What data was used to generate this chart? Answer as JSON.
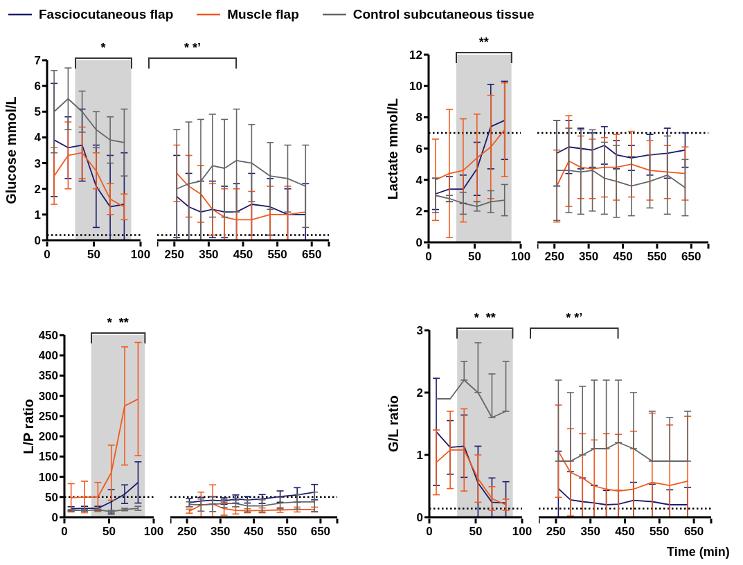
{
  "chart_data": [
    {
      "type": "line",
      "ylabel": "Glucose mmol/L",
      "legend": "top",
      "x": [
        7.5,
        22.5,
        37.5,
        52.5,
        67.5,
        82.5
      ],
      "xlim": [
        0,
        100
      ],
      "xticks": [
        0,
        50,
        100
      ],
      "ylim": [
        0,
        7
      ],
      "yticks": [
        0,
        1,
        2,
        3,
        4,
        5,
        6,
        7
      ],
      "series": [
        {
          "name": "Fasciocutaneous flap",
          "color": "#1c1c6e",
          "values": [
            3.9,
            3.6,
            3.7,
            2.1,
            1.3,
            1.4
          ],
          "errors": [
            2.2,
            1.2,
            1.4,
            1.6,
            [
              0,
              3.3
            ],
            [
              0,
              3.4
            ]
          ]
        },
        {
          "name": "Muscle flap",
          "color": "#f05a1e",
          "values": [
            2.5,
            3.3,
            3.4,
            2.7,
            1.6,
            1.3
          ],
          "errors": [
            1.1,
            1.3,
            1.0,
            0.7,
            0.6,
            0.5
          ]
        },
        {
          "name": "Control subcutaneous tissue",
          "color": "#666666",
          "values": [
            5.0,
            5.5,
            5.0,
            4.3,
            3.9,
            3.8
          ],
          "errors": [
            1.6,
            1.2,
            0.8,
            0.7,
            0.9,
            1.3
          ]
        }
      ],
      "bands": [
        {
          "axis": "x",
          "from": 30,
          "to": 90,
          "color": "#d4d4d4"
        }
      ],
      "ref_lines": [
        {
          "axis": "y",
          "value": 0.2,
          "line_style": "dotted"
        }
      ],
      "annotations": [
        "*"
      ]
    },
    {
      "type": "line",
      "tick_labels": "x",
      "x": [
        257,
        292,
        327,
        361,
        396,
        431,
        475,
        529,
        580,
        632
      ],
      "xlim": [
        200,
        700
      ],
      "xticks": [
        250,
        350,
        450,
        550,
        650
      ],
      "ylim": [
        0,
        7
      ],
      "series": [
        {
          "color": "#1c1c6e",
          "values": [
            1.7,
            1.3,
            1.1,
            1.2,
            1.1,
            1.1,
            1.4,
            1.3,
            1.0,
            1.0
          ],
          "errors": [
            1.6,
            [
              0,
              2.6
            ],
            [
              0,
              2.3
            ],
            1.1,
            1.0,
            1.1,
            1.2,
            1.1,
            1.0,
            [
              0,
              2.2
            ]
          ]
        },
        {
          "color": "#f05a1e",
          "values": [
            2.6,
            2.1,
            1.8,
            1.2,
            0.9,
            0.8,
            0.8,
            1.0,
            1.0,
            1.1
          ],
          "errors": [
            1.1,
            1.2,
            1.1,
            1.0,
            [
              0,
              2.0
            ],
            [
              0,
              2.0
            ],
            [
              0,
              1.9
            ],
            [
              0,
              2.1
            ],
            [
              0,
              2.1
            ],
            null
          ]
        },
        {
          "color": "#666666",
          "values": [
            2.0,
            2.2,
            2.3,
            2.9,
            2.8,
            3.1,
            3.0,
            2.5,
            2.4,
            2.1
          ],
          "errors": [
            [
              0,
              4.3
            ],
            [
              0,
              4.6
            ],
            [
              0,
              4.7
            ],
            2.0,
            1.9,
            2.0,
            1.5,
            1.3,
            1.3,
            1.6
          ]
        }
      ],
      "ref_lines": [
        {
          "axis": "y",
          "value": 0.2,
          "line_style": "dotted"
        }
      ],
      "annotations": [
        "* *’"
      ]
    },
    {
      "type": "line",
      "ylabel": "Lactate mmol/L",
      "x": [
        7.5,
        22.5,
        37.5,
        52.5,
        67.5,
        82.5
      ],
      "xlim": [
        0,
        100
      ],
      "xticks": [
        0,
        50,
        100
      ],
      "ylim": [
        0,
        12
      ],
      "yticks": [
        0,
        2,
        4,
        6,
        8,
        10,
        12
      ],
      "series": [
        {
          "color": "#1c1c6e",
          "values": [
            3.1,
            3.4,
            3.4,
            4.7,
            7.4,
            7.8
          ],
          "errors": [
            1.0,
            0.8,
            0.9,
            1.7,
            2.7,
            2.5
          ]
        },
        {
          "color": "#f05a1e",
          "values": [
            4.0,
            4.4,
            4.6,
            5.4,
            6.1,
            7.2
          ],
          "errors": [
            2.6,
            4.1,
            3.3,
            2.8,
            3.3,
            3.0
          ]
        },
        {
          "color": "#666666",
          "values": [
            3.0,
            2.8,
            2.5,
            2.3,
            2.6,
            2.7
          ],
          "errors": [
            1.1,
            0.2,
            0.7,
            0.3,
            0.7,
            1.0
          ]
        }
      ],
      "bands": [
        {
          "axis": "x",
          "from": 30,
          "to": 90,
          "color": "#d4d4d4"
        }
      ],
      "ref_lines": [
        {
          "axis": "y",
          "value": 7,
          "line_style": "dotted"
        }
      ],
      "annotations": [
        "**"
      ]
    },
    {
      "type": "line",
      "tick_labels": "x",
      "x": [
        257,
        292,
        327,
        361,
        396,
        431,
        475,
        529,
        580,
        632
      ],
      "xlim": [
        200,
        700
      ],
      "xticks": [
        250,
        350,
        450,
        550,
        650
      ],
      "ylim": [
        0,
        12
      ],
      "series": [
        {
          "color": "#1c1c6e",
          "values": [
            5.7,
            6.1,
            6.0,
            5.9,
            6.2,
            5.6,
            5.4,
            5.6,
            5.7,
            5.9
          ],
          "errors": [
            2.1,
            1.7,
            1.3,
            1.1,
            1.2,
            0.9,
            0.8,
            1.3,
            1.6,
            1.1
          ]
        },
        {
          "color": "#f05a1e",
          "values": [
            3.6,
            5.2,
            4.8,
            4.7,
            4.8,
            4.8,
            5.0,
            4.6,
            4.5,
            4.4
          ],
          "errors": [
            2.3,
            2.9,
            2.0,
            1.9,
            1.9,
            2.1,
            2.1,
            1.9,
            1.7,
            1.7
          ]
        },
        {
          "color": "#666666",
          "values": [
            4.6,
            4.6,
            4.5,
            4.6,
            4.1,
            3.9,
            3.6,
            3.9,
            4.3,
            3.5
          ],
          "errors": [
            3.2,
            2.7,
            2.7,
            2.6,
            2.3,
            2.3,
            1.9,
            1.7,
            2.5,
            1.8
          ]
        }
      ],
      "ref_lines": [
        {
          "axis": "y",
          "value": 7,
          "line_style": "dotted"
        }
      ]
    },
    {
      "type": "line",
      "ylabel": "L/P ratio",
      "x": [
        7.5,
        22.5,
        37.5,
        52.5,
        67.5,
        82.5
      ],
      "xlim": [
        0,
        100
      ],
      "xticks": [
        0,
        50,
        100
      ],
      "ylim": [
        0,
        450
      ],
      "yticks": [
        0,
        50,
        100,
        150,
        200,
        250,
        300,
        350,
        400,
        450
      ],
      "series": [
        {
          "color": "#1c1c6e",
          "values": [
            21,
            22,
            22,
            38,
            57,
            86
          ],
          "errors": [
            5,
            5,
            5,
            30,
            23,
            51
          ]
        },
        {
          "color": "#f05a1e",
          "values": [
            48,
            50,
            50,
            110,
            275,
            292
          ],
          "errors": [
            35,
            39,
            36,
            68,
            146,
            140
          ]
        },
        {
          "color": "#666666",
          "values": [
            17,
            17,
            18,
            14,
            19,
            22
          ],
          "errors": [
            2,
            2,
            2,
            3,
            3,
            5
          ]
        }
      ],
      "bands": [
        {
          "axis": "x",
          "from": 30,
          "to": 90,
          "color": "#d4d4d4"
        }
      ],
      "ref_lines": [
        {
          "axis": "y",
          "value": 50,
          "line_style": "dotted"
        }
      ],
      "annotations": [
        "*  **"
      ]
    },
    {
      "type": "line",
      "tick_labels": "x",
      "x": [
        257,
        292,
        327,
        361,
        396,
        431,
        475,
        529,
        580,
        632
      ],
      "xlim": [
        200,
        700
      ],
      "xticks": [
        250,
        350,
        450,
        550,
        650
      ],
      "ylim": [
        0,
        450
      ],
      "series": [
        {
          "color": "#1c1c6e",
          "values": [
            36,
            40,
            42,
            40,
            45,
            43,
            45,
            51,
            55,
            62
          ],
          "errors": [
            10,
            9,
            9,
            8,
            10,
            8,
            11,
            14,
            18,
            19
          ]
        },
        {
          "color": "#f05a1e",
          "values": [
            15,
            30,
            33,
            21,
            17,
            16,
            17,
            18,
            19,
            19
          ],
          "errors": [
            5,
            [
              0,
              62
            ],
            [
              0,
              80
            ],
            16,
            9,
            5,
            6,
            6,
            6,
            6
          ]
        },
        {
          "color": "#666666",
          "values": [
            32,
            30,
            32,
            34,
            34,
            28,
            28,
            35,
            38,
            38
          ],
          "errors": [
            6,
            15,
            18,
            10,
            8,
            15,
            15,
            14,
            18,
            24
          ]
        }
      ],
      "ref_lines": [
        {
          "axis": "y",
          "value": 50,
          "line_style": "dotted"
        }
      ]
    },
    {
      "type": "line",
      "ylabel": "G/L ratio",
      "x": [
        7.5,
        22.5,
        37.5,
        52.5,
        67.5,
        82.5
      ],
      "xlim": [
        0,
        100
      ],
      "xticks": [
        0,
        50,
        100
      ],
      "ylim": [
        0,
        3
      ],
      "yticks": [
        0,
        1,
        2,
        3
      ],
      "series": [
        {
          "color": "#1c1c6e",
          "values": [
            1.37,
            1.12,
            1.14,
            0.55,
            0.24,
            0.23
          ],
          "errors": [
            0.86,
            0.43,
            0.5,
            [
              0,
              1.14
            ],
            [
              0,
              0.63
            ],
            [
              0,
              0.57
            ]
          ]
        },
        {
          "color": "#f05a1e",
          "values": [
            0.88,
            1.08,
            1.08,
            0.62,
            0.3,
            0.2
          ],
          "errors": [
            0.52,
            0.62,
            0.66,
            0.38,
            0.19,
            0.09
          ]
        },
        {
          "color": "#666666",
          "values": [
            1.9,
            1.9,
            2.2,
            2.0,
            1.6,
            1.7
          ],
          "errors": [
            null,
            null,
            [
              2.2,
              2.5
            ],
            [
              2.0,
              2.8
            ],
            [
              1.6,
              2.3
            ],
            [
              1.7,
              2.5
            ]
          ]
        }
      ],
      "bands": [
        {
          "axis": "x",
          "from": 30,
          "to": 90,
          "color": "#d4d4d4"
        }
      ],
      "ref_lines": [
        {
          "axis": "y",
          "value": 0.14,
          "line_style": "dotted"
        }
      ],
      "annotations": [
        "*  **"
      ]
    },
    {
      "type": "line",
      "tick_labels": "x",
      "xlabel": "Time (min)",
      "x": [
        257,
        292,
        327,
        361,
        396,
        431,
        475,
        529,
        580,
        632
      ],
      "xlim": [
        200,
        700
      ],
      "xticks": [
        250,
        350,
        450,
        550,
        650
      ],
      "ylim": [
        0,
        3
      ],
      "series": [
        {
          "color": "#1c1c6e",
          "values": [
            0.46,
            0.28,
            0.25,
            0.23,
            0.2,
            0.21,
            0.27,
            0.25,
            0.2,
            0.2
          ],
          "errors": [
            [
              0,
              1.06
            ],
            [
              0,
              0.73
            ],
            [
              0,
              0.63
            ],
            [
              0,
              0.51
            ],
            [
              0,
              0.43
            ],
            [
              0,
              0.43
            ],
            [
              0,
              0.56
            ],
            [
              0,
              0.53
            ],
            [
              0,
              0.44
            ],
            [
              0,
              0.48
            ]
          ]
        },
        {
          "color": "#f05a1e",
          "values": [
            1.06,
            0.72,
            0.63,
            0.5,
            0.45,
            0.42,
            0.45,
            0.56,
            0.51,
            0.58
          ],
          "errors": [
            0.74,
            0.7,
            [
              0,
              1.34
            ],
            [
              0,
              1.24
            ],
            [
              0,
              1.34
            ],
            [
              0,
              1.33
            ],
            [
              0,
              1.38
            ],
            [
              0,
              1.67
            ],
            [
              0,
              1.48
            ],
            [
              0,
              1.62
            ]
          ]
        },
        {
          "color": "#666666",
          "values": [
            0.9,
            0.9,
            1.0,
            1.1,
            1.1,
            1.2,
            1.1,
            0.9,
            0.9,
            0.9
          ],
          "errors": [
            [
              0.9,
              2.2
            ],
            [
              0.9,
              2.0
            ],
            [
              1.0,
              2.1
            ],
            [
              1.1,
              2.2
            ],
            [
              1.1,
              2.2
            ],
            [
              1.2,
              2.2
            ],
            [
              1.1,
              2.0
            ],
            [
              0.9,
              1.7
            ],
            [
              0.9,
              1.6
            ],
            [
              0.9,
              1.7
            ]
          ]
        }
      ],
      "ref_lines": [
        {
          "axis": "y",
          "value": 0.14,
          "line_style": "dotted"
        }
      ],
      "annotations": [
        "* *’"
      ]
    }
  ]
}
